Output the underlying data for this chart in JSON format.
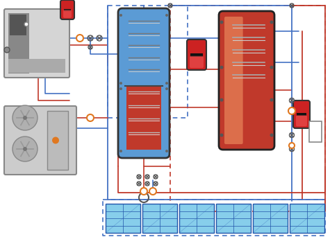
{
  "bg_color": "#ffffff",
  "pipe_blue": "#4472c4",
  "pipe_red": "#c0392b",
  "tank1_top_color": "#5b9bd5",
  "tank1_bot_color": "#c0392b",
  "tank2_color": "#c0392b",
  "tank2_highlight": "#e8735a",
  "panel_blue": "#87ceeb",
  "vessel_red": "#c0392b",
  "valve_orange": "#e07820",
  "gray_light": "#d0d0d0",
  "gray_mid": "#a0a0a0",
  "gray_dark": "#707070",
  "coil_gray": "#999999",
  "figsize": [
    4.75,
    3.42
  ],
  "dpi": 100
}
